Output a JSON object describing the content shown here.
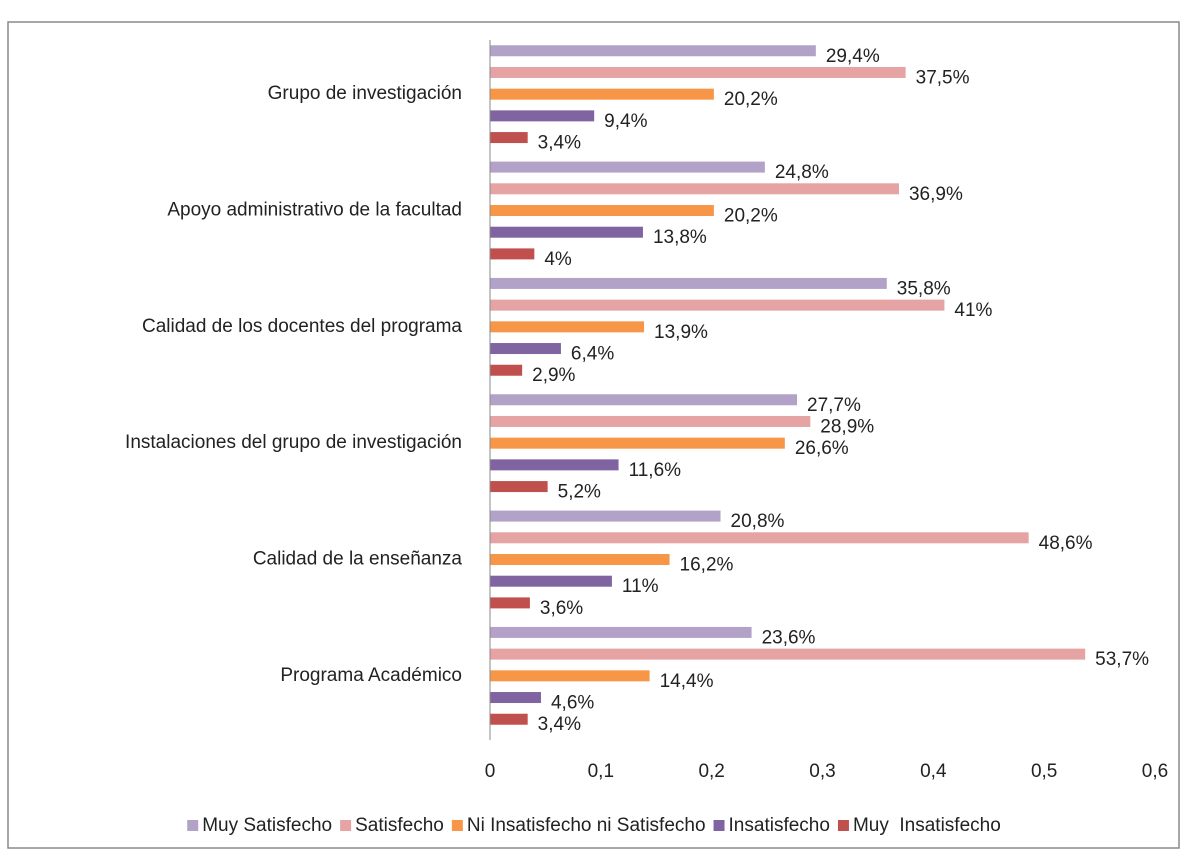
{
  "chart_data": {
    "type": "hbar",
    "categories": [
      "Grupo de investigación",
      "Apoyo administrativo de la facultad",
      "Calidad de los docentes del programa",
      "Instalaciones del grupo de investigación",
      "Calidad de la enseñanza",
      "Programa Académico"
    ],
    "series": [
      {
        "name": "Muy Satisfecho",
        "color": "#b3a2c7",
        "values": [
          0.294,
          0.248,
          0.358,
          0.277,
          0.208,
          0.236
        ],
        "value_labels": [
          "29,4%",
          "24,8%",
          "35,8%",
          "27,7%",
          "20,8%",
          "23,6%"
        ]
      },
      {
        "name": "Satisfecho",
        "color": "#e6a3a3",
        "values": [
          0.375,
          0.369,
          0.41,
          0.289,
          0.486,
          0.537
        ],
        "value_labels": [
          "37,5%",
          "36,9%",
          "41%",
          "28,9%",
          "48,6%",
          "53,7%"
        ]
      },
      {
        "name": "Ni Insatisfecho ni Satisfecho",
        "color": "#f79646",
        "values": [
          0.202,
          0.202,
          0.139,
          0.266,
          0.162,
          0.144
        ],
        "value_labels": [
          "20,2%",
          "20,2%",
          "13,9%",
          "26,6%",
          "16,2%",
          "14,4%"
        ]
      },
      {
        "name": "Insatisfecho",
        "color": "#8064a2",
        "values": [
          0.094,
          0.138,
          0.064,
          0.116,
          0.11,
          0.046
        ],
        "value_labels": [
          "9,4%",
          "13,8%",
          "6,4%",
          "11,6%",
          "11%",
          "4,6%"
        ]
      },
      {
        "name": "Muy  Insatisfecho",
        "color": "#c0504d",
        "values": [
          0.034,
          0.04,
          0.029,
          0.052,
          0.036,
          0.034
        ],
        "value_labels": [
          "3,4%",
          "4%",
          "2,9%",
          "5,2%",
          "3,6%",
          "3,4%"
        ]
      }
    ],
    "xlim": [
      0,
      0.6
    ],
    "xticks": [
      0,
      {
        "value": 0.1,
        "label": "0,1"
      },
      {
        "value": 0.2,
        "label": "0,2"
      },
      {
        "value": 0.3,
        "label": "0,3"
      },
      {
        "value": 0.4,
        "label": "0,4"
      },
      {
        "value": 0.5,
        "label": "0,5"
      },
      {
        "value": 0.6,
        "label": "0,6"
      }
    ],
    "grid": false,
    "legend": "bottom"
  }
}
